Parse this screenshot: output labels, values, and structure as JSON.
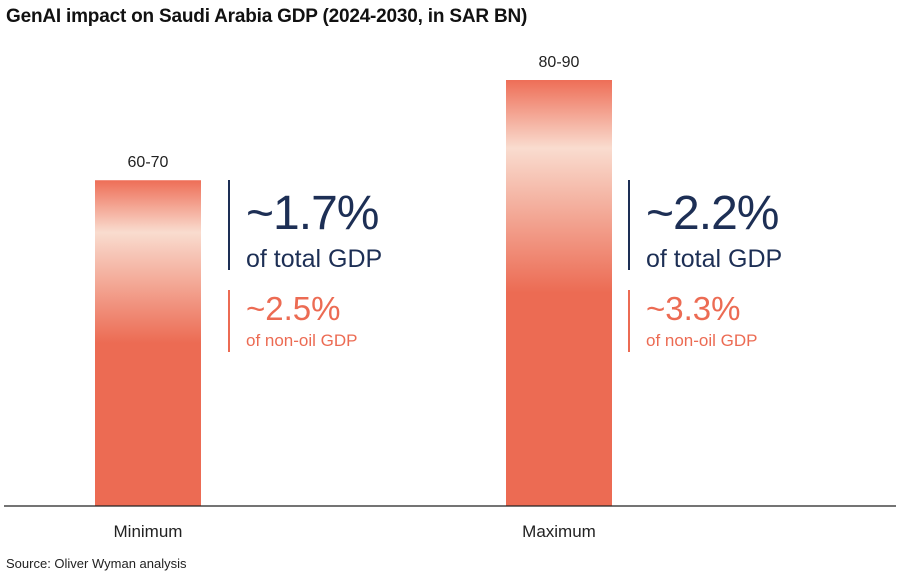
{
  "title": "GenAI impact on Saudi Arabia GDP (2024-2030, in SAR BN)",
  "source": "Source: Oliver Wyman analysis",
  "colors": {
    "bar_top": "#ee6e57",
    "bar_light": "#f9dccf",
    "bar_bottom": "#ec6b53",
    "navy": "#1d2f55",
    "coral": "#ec6b53"
  },
  "chart_data": {
    "type": "bar",
    "title": "GenAI impact on Saudi Arabia GDP (2024-2030, in SAR BN)",
    "xlabel": "",
    "ylabel": "",
    "categories": [
      "Minimum",
      "Maximum"
    ],
    "value_labels": [
      "60-70",
      "80-90"
    ],
    "ranges": [
      [
        60,
        70
      ],
      [
        80,
        90
      ]
    ],
    "values": [
      65,
      85
    ],
    "ylim": [
      0,
      100
    ],
    "grid": false,
    "legend": "none"
  },
  "callouts": [
    {
      "category": "Minimum",
      "total_value": "~1.7%",
      "total_label": "of total GDP",
      "nonoil_value": "~2.5%",
      "nonoil_label": "of non-oil GDP"
    },
    {
      "category": "Maximum",
      "total_value": "~2.2%",
      "total_label": "of total GDP",
      "nonoil_value": "~3.3%",
      "nonoil_label": "of non-oil GDP"
    }
  ]
}
